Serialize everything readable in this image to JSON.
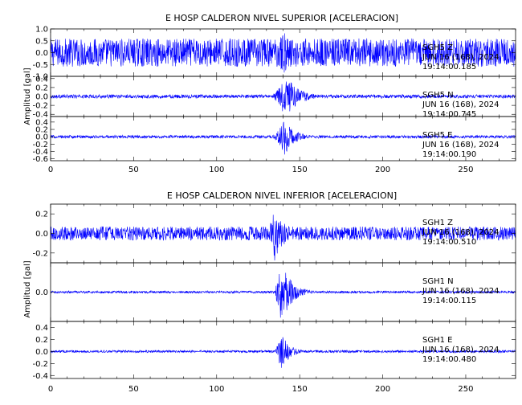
{
  "chart_data": [
    {
      "type": "line",
      "title": "E HOSP CALDERON NIVEL SUPERIOR [ACELERACION]",
      "ylabel": "Amplitud [gal]",
      "xlim": [
        0,
        280
      ],
      "xticks": [
        0,
        50,
        100,
        150,
        200,
        250
      ],
      "series": [
        {
          "name": "SGH5 Z",
          "station": "SGH5",
          "component": "Z",
          "date": "JUN 16 (168), 2024",
          "time": "19:14:00.185",
          "ylim": [
            -1.0,
            1.0
          ],
          "yticks": [
            "1.0",
            "0.5",
            "0.0",
            "-0.5",
            "-1.0"
          ],
          "ytick_values": [
            1.0,
            0.5,
            0.0,
            -0.5,
            -1.0
          ],
          "noise_amplitude": 0.6,
          "event": {
            "onset": 135,
            "peak_time": 140,
            "peak": 1.0,
            "decay_s": 8
          }
        },
        {
          "name": "SGH5 N",
          "station": "SGH5",
          "component": "N",
          "date": "JUN 16 (168), 2024",
          "time": "19:14:00.745",
          "ylim": [
            -0.45,
            0.45
          ],
          "yticks": [
            "0.4",
            "0.2",
            "0.0",
            "-0.2",
            "-0.4"
          ],
          "ytick_values": [
            0.4,
            0.2,
            0.0,
            -0.2,
            -0.4
          ],
          "noise_amplitude": 0.04,
          "event": {
            "onset": 133,
            "peak_time": 142,
            "peak": 0.45,
            "decay_s": 8
          }
        },
        {
          "name": "SGH5 E",
          "station": "SGH5",
          "component": "E",
          "date": "JUN 16 (168), 2024",
          "time": "19:14:00.190",
          "ylim": [
            -0.65,
            0.55
          ],
          "yticks": [
            "0.4",
            "0.2",
            "0.0",
            "-0.2",
            "-0.4",
            "-0.6"
          ],
          "ytick_values": [
            0.4,
            0.2,
            0.0,
            -0.2,
            -0.4,
            -0.6
          ],
          "noise_amplitude": 0.04,
          "event": {
            "onset": 134,
            "peak_time": 141,
            "peak": 0.5,
            "decay_s": 6
          }
        }
      ]
    },
    {
      "type": "line",
      "title": "E HOSP CALDERON NIVEL INFERIOR [ACELERACION]",
      "ylabel": "Amplitud [gal]",
      "xlim": [
        0,
        280
      ],
      "xticks": [
        0,
        50,
        100,
        150,
        200,
        250
      ],
      "series": [
        {
          "name": "SGH1 Z",
          "station": "SGH1",
          "component": "Z",
          "date": "JUN 16 (168), 2024",
          "time": "19:14:00.510",
          "ylim": [
            -0.3,
            0.3
          ],
          "yticks": [
            "0.2",
            "0.0",
            "-0.2"
          ],
          "ytick_values": [
            0.2,
            0.0,
            -0.2
          ],
          "noise_amplitude": 0.07,
          "event": {
            "onset": 131,
            "peak_time": 135,
            "peak": 0.3,
            "decay_s": 6
          }
        },
        {
          "name": "SGH1 N",
          "station": "SGH1",
          "component": "N",
          "date": "JUN 16 (168), 2024",
          "time": "19:14:00.115",
          "ylim": [
            -0.5,
            0.5
          ],
          "yticks": [
            "0.0"
          ],
          "ytick_values": [
            0.0
          ],
          "noise_amplitude": 0.02,
          "event": {
            "onset": 135,
            "peak_time": 139,
            "peak": 0.55,
            "decay_s": 6
          }
        },
        {
          "name": "SGH1 E",
          "station": "SGH1",
          "component": "E",
          "date": "JUN 16 (168), 2024",
          "time": "19:14:00.480",
          "ylim": [
            -0.45,
            0.5
          ],
          "yticks": [
            "0.4",
            "0.2",
            "0.0",
            "-0.2",
            "-0.4"
          ],
          "ytick_values": [
            0.4,
            0.2,
            0.0,
            -0.2,
            -0.4
          ],
          "noise_amplitude": 0.02,
          "event": {
            "onset": 135,
            "peak_time": 139,
            "peak": 0.3,
            "decay_s": 5
          }
        }
      ]
    }
  ],
  "colors": {
    "trace": "#0000ff",
    "axis": "#000000",
    "background": "#ffffff"
  }
}
